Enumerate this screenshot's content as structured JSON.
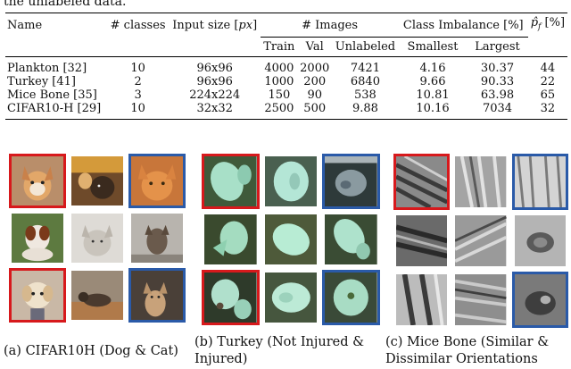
{
  "intro_text": "the unlabeled data.",
  "table": {
    "headers": {
      "name": "Name",
      "classes": "# classes",
      "input_size": "Input size [",
      "input_size_unit": "px",
      "input_size_close": "]",
      "images_group": "# Images",
      "imbalance_group": "Class Imbalance [%]",
      "pf": "p̂",
      "pf_sub": "f",
      "pf_unit": " [%]",
      "train": "Train",
      "val": "Val",
      "unlabeled": "Unlabeled",
      "smallest": "Smallest",
      "largest": "Largest"
    },
    "rows": [
      {
        "name": "Plankton [32]",
        "classes": "10",
        "input_size": "96x96",
        "train": "4000",
        "val": "2000",
        "unlabeled": "7421",
        "smallest": "4.16",
        "largest": "30.37",
        "pf": "44"
      },
      {
        "name": "Turkey [41]",
        "classes": "2",
        "input_size": "96x96",
        "train": "1000",
        "val": "200",
        "unlabeled": "6840",
        "smallest": "9.66",
        "largest": "90.33",
        "pf": "22"
      },
      {
        "name": "Mice Bone [35]",
        "classes": "3",
        "input_size": "224x224",
        "train": "150",
        "val": "90",
        "unlabeled": "538",
        "smallest": "10.81",
        "largest": "63.98",
        "pf": "65"
      },
      {
        "name": "CIFAR10-H [29]",
        "classes": "10",
        "input_size": "32x32",
        "train": "2500",
        "val": "500",
        "unlabeled": "9.88",
        "smallest": "10.16",
        "largest": "7034",
        "pf": "32"
      }
    ]
  },
  "panels": {
    "cifar": {
      "caption_line1": "(a) CIFAR10H (Dog & Cat)",
      "caption_line2": ""
    },
    "turkey": {
      "caption_line1": "(b) Turkey (Not Injured &",
      "caption_line2": "Injured)"
    },
    "bone": {
      "caption_line1": "(c) Mice Bone (Similar &",
      "caption_line2": "Dissimilar Orientations"
    }
  },
  "colors": {
    "red_frame": "#d7191c",
    "blue_frame": "#2a5aa8"
  }
}
